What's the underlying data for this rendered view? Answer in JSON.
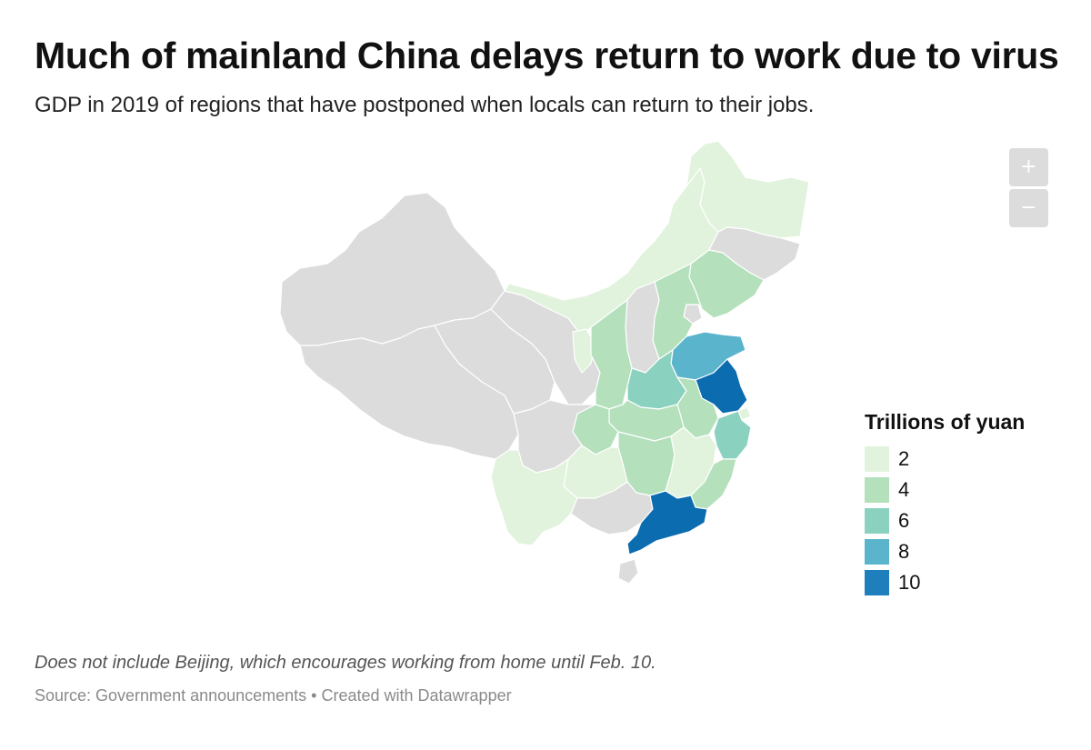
{
  "header": {
    "title": "Much of mainland China delays return to work due to virus",
    "subtitle": "GDP in 2019 of regions that have postponed when locals can return to their jobs."
  },
  "controls": {
    "zoom_in": "+",
    "zoom_out": "−"
  },
  "legend": {
    "title": "Trillions of yuan",
    "items": [
      {
        "label": "2",
        "color": "#e1f3dc"
      },
      {
        "label": "4",
        "color": "#b4e0bc"
      },
      {
        "label": "6",
        "color": "#8bd1c0"
      },
      {
        "label": "8",
        "color": "#5ab5cc"
      },
      {
        "label": "10",
        "color": "#1f7fbd"
      }
    ]
  },
  "colors": {
    "no_data": "#dcdcdc",
    "darkest": "#0b6cb0"
  },
  "footer": {
    "note": "Does not include Beijing, which encourages working from home until Feb. 10.",
    "source": "Source: Government announcements",
    "separator": " • ",
    "credit": "Created with Datawrapper"
  }
}
